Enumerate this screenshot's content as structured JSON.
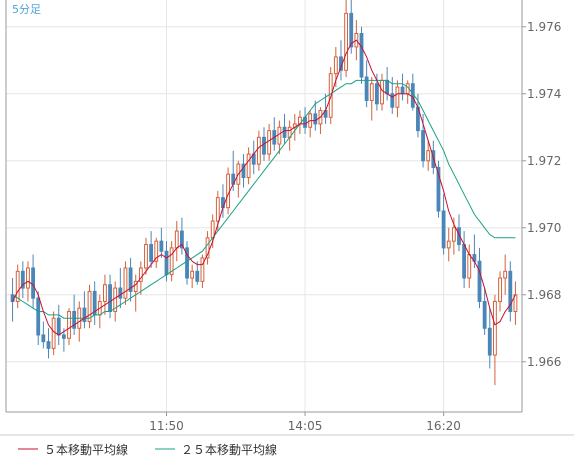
{
  "timeframe_label": "5分足",
  "colors": {
    "up": "#d4613a",
    "down": "#4a86b8",
    "ma5": "#c8102e",
    "ma25": "#1aa084",
    "grid": "#e6e6e6",
    "frame": "#999999",
    "label": "#666666",
    "timeframe": "#4aa7d8"
  },
  "chart_data": {
    "type": "candlestick",
    "ylim": [
      1.9645,
      1.9768
    ],
    "yticks": [
      "1.966",
      "1.968",
      "1.970",
      "1.972",
      "1.974",
      "1.976"
    ],
    "xticks": [
      "11:50",
      "14:05",
      "16:20"
    ],
    "xtick_index": [
      30,
      57,
      84
    ],
    "grid": true,
    "candles": [
      [
        1.968,
        1.9685,
        1.9672,
        1.9678
      ],
      [
        1.9678,
        1.9689,
        1.9676,
        1.9687
      ],
      [
        1.9687,
        1.969,
        1.9679,
        1.9682
      ],
      [
        1.9682,
        1.969,
        1.9678,
        1.9688
      ],
      [
        1.9688,
        1.9692,
        1.9676,
        1.9679
      ],
      [
        1.9679,
        1.9681,
        1.9665,
        1.9668
      ],
      [
        1.9668,
        1.9672,
        1.9664,
        1.9666
      ],
      [
        1.9666,
        1.967,
        1.9661,
        1.9664
      ],
      [
        1.9664,
        1.9675,
        1.9662,
        1.9673
      ],
      [
        1.9673,
        1.9677,
        1.9665,
        1.9668
      ],
      [
        1.9668,
        1.967,
        1.9663,
        1.9667
      ],
      [
        1.9667,
        1.9676,
        1.9665,
        1.9675
      ],
      [
        1.9675,
        1.968,
        1.9668,
        1.967
      ],
      [
        1.967,
        1.9678,
        1.9666,
        1.9676
      ],
      [
        1.9676,
        1.9681,
        1.967,
        1.9672
      ],
      [
        1.9672,
        1.9683,
        1.967,
        1.9681
      ],
      [
        1.9681,
        1.9684,
        1.9671,
        1.9674
      ],
      [
        1.9674,
        1.968,
        1.967,
        1.9678
      ],
      [
        1.9678,
        1.9686,
        1.9674,
        1.9683
      ],
      [
        1.9683,
        1.9686,
        1.9673,
        1.9675
      ],
      [
        1.9675,
        1.9684,
        1.9672,
        1.9682
      ],
      [
        1.9682,
        1.9688,
        1.9676,
        1.9679
      ],
      [
        1.9679,
        1.969,
        1.9677,
        1.9688
      ],
      [
        1.9688,
        1.9691,
        1.9678,
        1.9681
      ],
      [
        1.9681,
        1.9686,
        1.9675,
        1.9684
      ],
      [
        1.9684,
        1.969,
        1.968,
        1.9688
      ],
      [
        1.9688,
        1.9697,
        1.9686,
        1.9695
      ],
      [
        1.9695,
        1.9699,
        1.9688,
        1.969
      ],
      [
        1.969,
        1.9697,
        1.9688,
        1.9696
      ],
      [
        1.9696,
        1.97,
        1.9691,
        1.9693
      ],
      [
        1.9693,
        1.9696,
        1.9684,
        1.9686
      ],
      [
        1.9686,
        1.9696,
        1.9684,
        1.9694
      ],
      [
        1.9694,
        1.9702,
        1.969,
        1.9699
      ],
      [
        1.9699,
        1.9703,
        1.9692,
        1.9694
      ],
      [
        1.9694,
        1.9696,
        1.9683,
        1.9685
      ],
      [
        1.9685,
        1.9689,
        1.9682,
        1.9687
      ],
      [
        1.9687,
        1.969,
        1.9683,
        1.9684
      ],
      [
        1.9684,
        1.9692,
        1.9682,
        1.9691
      ],
      [
        1.9691,
        1.9699,
        1.9689,
        1.9697
      ],
      [
        1.9697,
        1.9704,
        1.9694,
        1.9702
      ],
      [
        1.9702,
        1.9711,
        1.9699,
        1.9709
      ],
      [
        1.9709,
        1.9713,
        1.9703,
        1.9706
      ],
      [
        1.9706,
        1.9718,
        1.9704,
        1.9716
      ],
      [
        1.9716,
        1.9723,
        1.9711,
        1.9713
      ],
      [
        1.9713,
        1.972,
        1.9709,
        1.9719
      ],
      [
        1.9719,
        1.9722,
        1.9712,
        1.9715
      ],
      [
        1.9715,
        1.9724,
        1.9713,
        1.9722
      ],
      [
        1.9722,
        1.9726,
        1.9716,
        1.9719
      ],
      [
        1.9719,
        1.9729,
        1.9717,
        1.9727
      ],
      [
        1.9727,
        1.973,
        1.972,
        1.9722
      ],
      [
        1.9722,
        1.9731,
        1.972,
        1.9729
      ],
      [
        1.9729,
        1.9733,
        1.9723,
        1.9725
      ],
      [
        1.9725,
        1.9732,
        1.9722,
        1.973
      ],
      [
        1.973,
        1.9734,
        1.9725,
        1.9727
      ],
      [
        1.9727,
        1.9732,
        1.9723,
        1.973
      ],
      [
        1.973,
        1.9734,
        1.9726,
        1.9731
      ],
      [
        1.9731,
        1.9735,
        1.9728,
        1.9733
      ],
      [
        1.9733,
        1.9736,
        1.9728,
        1.973
      ],
      [
        1.973,
        1.9735,
        1.9727,
        1.9734
      ],
      [
        1.9734,
        1.9738,
        1.9729,
        1.9731
      ],
      [
        1.9731,
        1.9736,
        1.9728,
        1.9735
      ],
      [
        1.9735,
        1.974,
        1.9731,
        1.9733
      ],
      [
        1.9733,
        1.9748,
        1.9731,
        1.9746
      ],
      [
        1.9746,
        1.9754,
        1.9742,
        1.9751
      ],
      [
        1.9751,
        1.9756,
        1.9744,
        1.9747
      ],
      [
        1.9747,
        1.9768,
        1.9745,
        1.9764
      ],
      [
        1.9764,
        1.9768,
        1.9752,
        1.9754
      ],
      [
        1.9754,
        1.9762,
        1.975,
        1.9758
      ],
      [
        1.9758,
        1.976,
        1.9743,
        1.9745
      ],
      [
        1.9745,
        1.975,
        1.9736,
        1.9738
      ],
      [
        1.9738,
        1.9745,
        1.9732,
        1.9743
      ],
      [
        1.9743,
        1.9746,
        1.9735,
        1.9737
      ],
      [
        1.9737,
        1.9746,
        1.9735,
        1.9744
      ],
      [
        1.9744,
        1.9748,
        1.9738,
        1.974
      ],
      [
        1.974,
        1.9745,
        1.9734,
        1.9736
      ],
      [
        1.9736,
        1.9744,
        1.9733,
        1.9742
      ],
      [
        1.9742,
        1.9746,
        1.9738,
        1.974
      ],
      [
        1.974,
        1.9744,
        1.9737,
        1.9743
      ],
      [
        1.9743,
        1.9746,
        1.9735,
        1.9736
      ],
      [
        1.9736,
        1.974,
        1.9727,
        1.9729
      ],
      [
        1.9729,
        1.9734,
        1.9718,
        1.972
      ],
      [
        1.972,
        1.9726,
        1.9717,
        1.9723
      ],
      [
        1.9723,
        1.9726,
        1.9716,
        1.9718
      ],
      [
        1.9718,
        1.972,
        1.9703,
        1.9705
      ],
      [
        1.9705,
        1.971,
        1.9692,
        1.9694
      ],
      [
        1.9694,
        1.97,
        1.969,
        1.9696
      ],
      [
        1.9696,
        1.9703,
        1.9692,
        1.97
      ],
      [
        1.97,
        1.9704,
        1.9693,
        1.9695
      ],
      [
        1.9695,
        1.9699,
        1.9682,
        1.9685
      ],
      [
        1.9685,
        1.9695,
        1.9682,
        1.9692
      ],
      [
        1.9692,
        1.9698,
        1.9688,
        1.969
      ],
      [
        1.969,
        1.9694,
        1.9676,
        1.9678
      ],
      [
        1.9678,
        1.9682,
        1.9668,
        1.967
      ],
      [
        1.967,
        1.9676,
        1.9658,
        1.9662
      ],
      [
        1.9662,
        1.968,
        1.9653,
        1.9678
      ],
      [
        1.9678,
        1.9687,
        1.9675,
        1.9685
      ],
      [
        1.9685,
        1.9692,
        1.968,
        1.9687
      ],
      [
        1.9687,
        1.969,
        1.9672,
        1.9675
      ],
      [
        1.9675,
        1.9684,
        1.9671,
        1.968
      ]
    ],
    "ma5": [
      1.9678,
      1.9681,
      1.9683,
      1.9684,
      1.9683,
      1.968,
      1.9675,
      1.9671,
      1.9669,
      1.9668,
      1.9669,
      1.967,
      1.9671,
      1.9672,
      1.9673,
      1.9674,
      1.9675,
      1.9676,
      1.9677,
      1.9678,
      1.9679,
      1.968,
      1.9681,
      1.9682,
      1.9683,
      1.9685,
      1.9687,
      1.9689,
      1.9691,
      1.9692,
      1.9691,
      1.9692,
      1.9694,
      1.9695,
      1.9692,
      1.969,
      1.9689,
      1.9689,
      1.9692,
      1.9696,
      1.9701,
      1.9706,
      1.971,
      1.9713,
      1.9716,
      1.9718,
      1.972,
      1.9722,
      1.9724,
      1.9725,
      1.9726,
      1.9727,
      1.9728,
      1.9729,
      1.9729,
      1.973,
      1.9731,
      1.9731,
      1.9732,
      1.9732,
      1.9733,
      1.9735,
      1.9739,
      1.9744,
      1.9748,
      1.9752,
      1.9755,
      1.9756,
      1.9754,
      1.9751,
      1.9747,
      1.9744,
      1.9741,
      1.974,
      1.9739,
      1.974,
      1.974,
      1.974,
      1.9739,
      1.9736,
      1.9731,
      1.9726,
      1.9721,
      1.9716,
      1.9711,
      1.9705,
      1.9701,
      1.9698,
      1.9695,
      1.9692,
      1.969,
      1.9687,
      1.9682,
      1.9676,
      1.9671,
      1.9672,
      1.9675,
      1.9677,
      1.968
    ],
    "ma25": [
      1.968,
      1.9679,
      1.9678,
      1.9677,
      1.9676,
      1.9675,
      1.9675,
      1.9674,
      1.9674,
      1.9674,
      1.9673,
      1.9673,
      1.9673,
      1.9673,
      1.9673,
      1.9673,
      1.9674,
      1.9674,
      1.9675,
      1.9675,
      1.9676,
      1.9677,
      1.9678,
      1.9679,
      1.968,
      1.9681,
      1.9682,
      1.9683,
      1.9684,
      1.9685,
      1.9686,
      1.9687,
      1.9688,
      1.9689,
      1.969,
      1.9691,
      1.9692,
      1.9693,
      1.9695,
      1.9697,
      1.9699,
      1.9701,
      1.9703,
      1.9705,
      1.9707,
      1.9709,
      1.9711,
      1.9713,
      1.9715,
      1.9717,
      1.9719,
      1.9721,
      1.9723,
      1.9725,
      1.9727,
      1.9729,
      1.9731,
      1.9733,
      1.9735,
      1.9737,
      1.9738,
      1.9739,
      1.974,
      1.9741,
      1.9742,
      1.9743,
      1.9743,
      1.9744,
      1.9744,
      1.9744,
      1.9744,
      1.9744,
      1.9744,
      1.9744,
      1.9743,
      1.9743,
      1.9743,
      1.9742,
      1.974,
      1.9738,
      1.9735,
      1.9732,
      1.9729,
      1.9726,
      1.9723,
      1.9719,
      1.9716,
      1.9713,
      1.971,
      1.9707,
      1.9704,
      1.9702,
      1.97,
      1.9698,
      1.9697,
      1.9697,
      1.9697,
      1.9697,
      1.9697
    ],
    "legend": [
      {
        "name": "５本移動平均線",
        "color": "#c8102e"
      },
      {
        "name": "２５本移動平均線",
        "color": "#1aa084"
      }
    ]
  }
}
